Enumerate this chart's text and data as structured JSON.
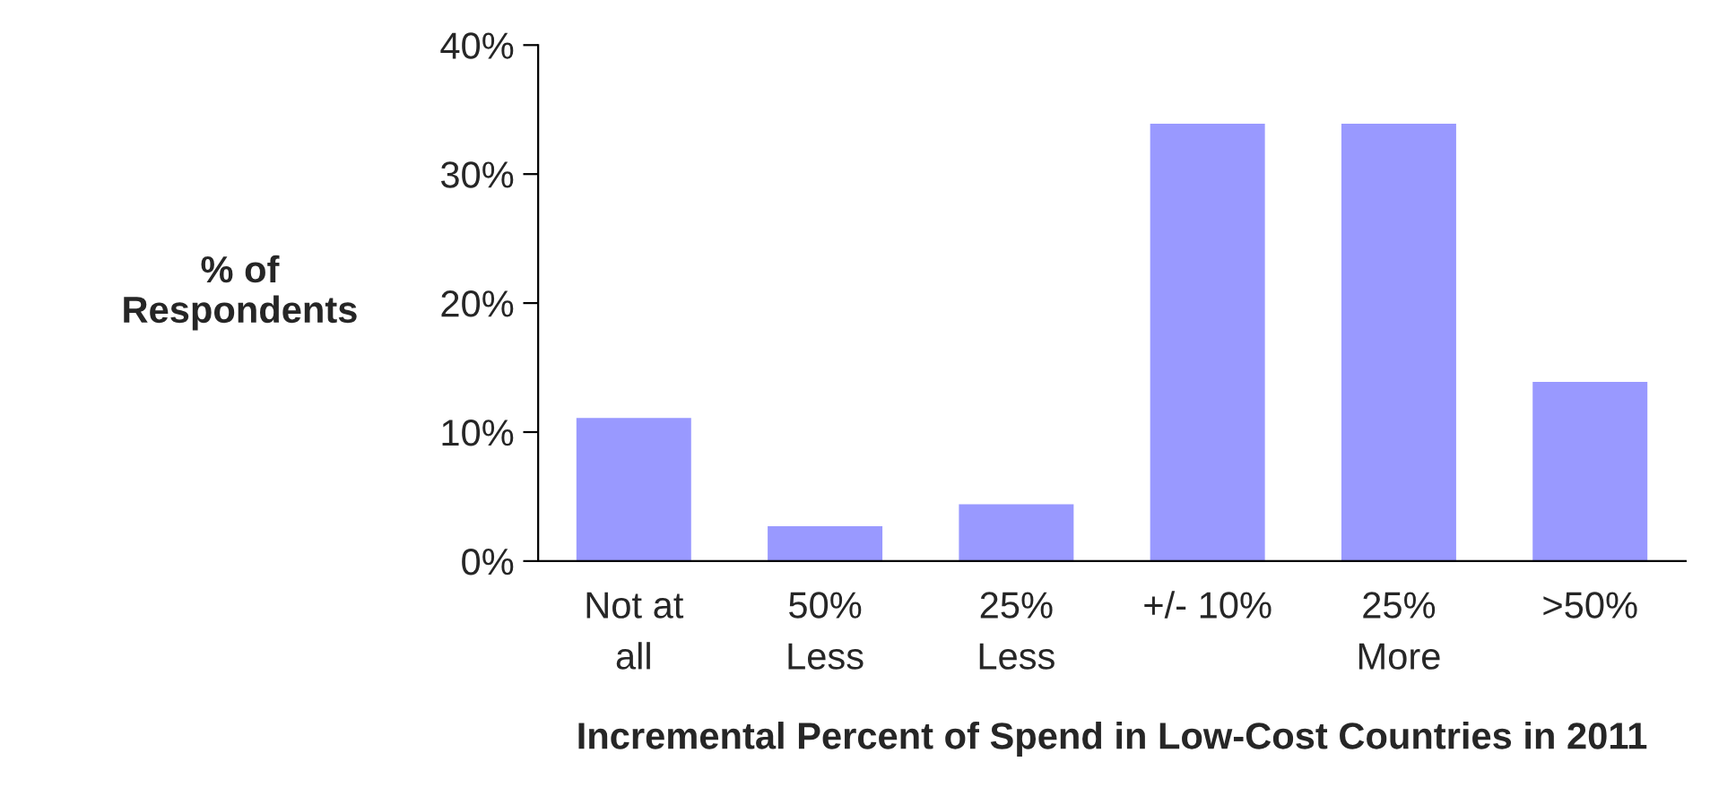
{
  "chart_data": {
    "type": "bar",
    "categories": [
      "Not at\nall",
      "50%\nLess",
      "25%\nLess",
      "+/- 10%",
      "25%\nMore",
      ">50%"
    ],
    "values": [
      11.1,
      2.7,
      4.4,
      33.9,
      33.9,
      13.9
    ],
    "color": "#9999ff",
    "ylabel": "% of\nRespondents",
    "xlabel": "Incremental Percent of Spend in Low-Cost Countries in 2011",
    "ylim": [
      0,
      40
    ],
    "yticks": [
      {
        "value": 0,
        "label": "0%"
      },
      {
        "value": 10,
        "label": "10%"
      },
      {
        "value": 20,
        "label": "20%"
      },
      {
        "value": 30,
        "label": "30%"
      },
      {
        "value": 40,
        "label": "40%"
      }
    ],
    "grid": false,
    "legend": false
  }
}
